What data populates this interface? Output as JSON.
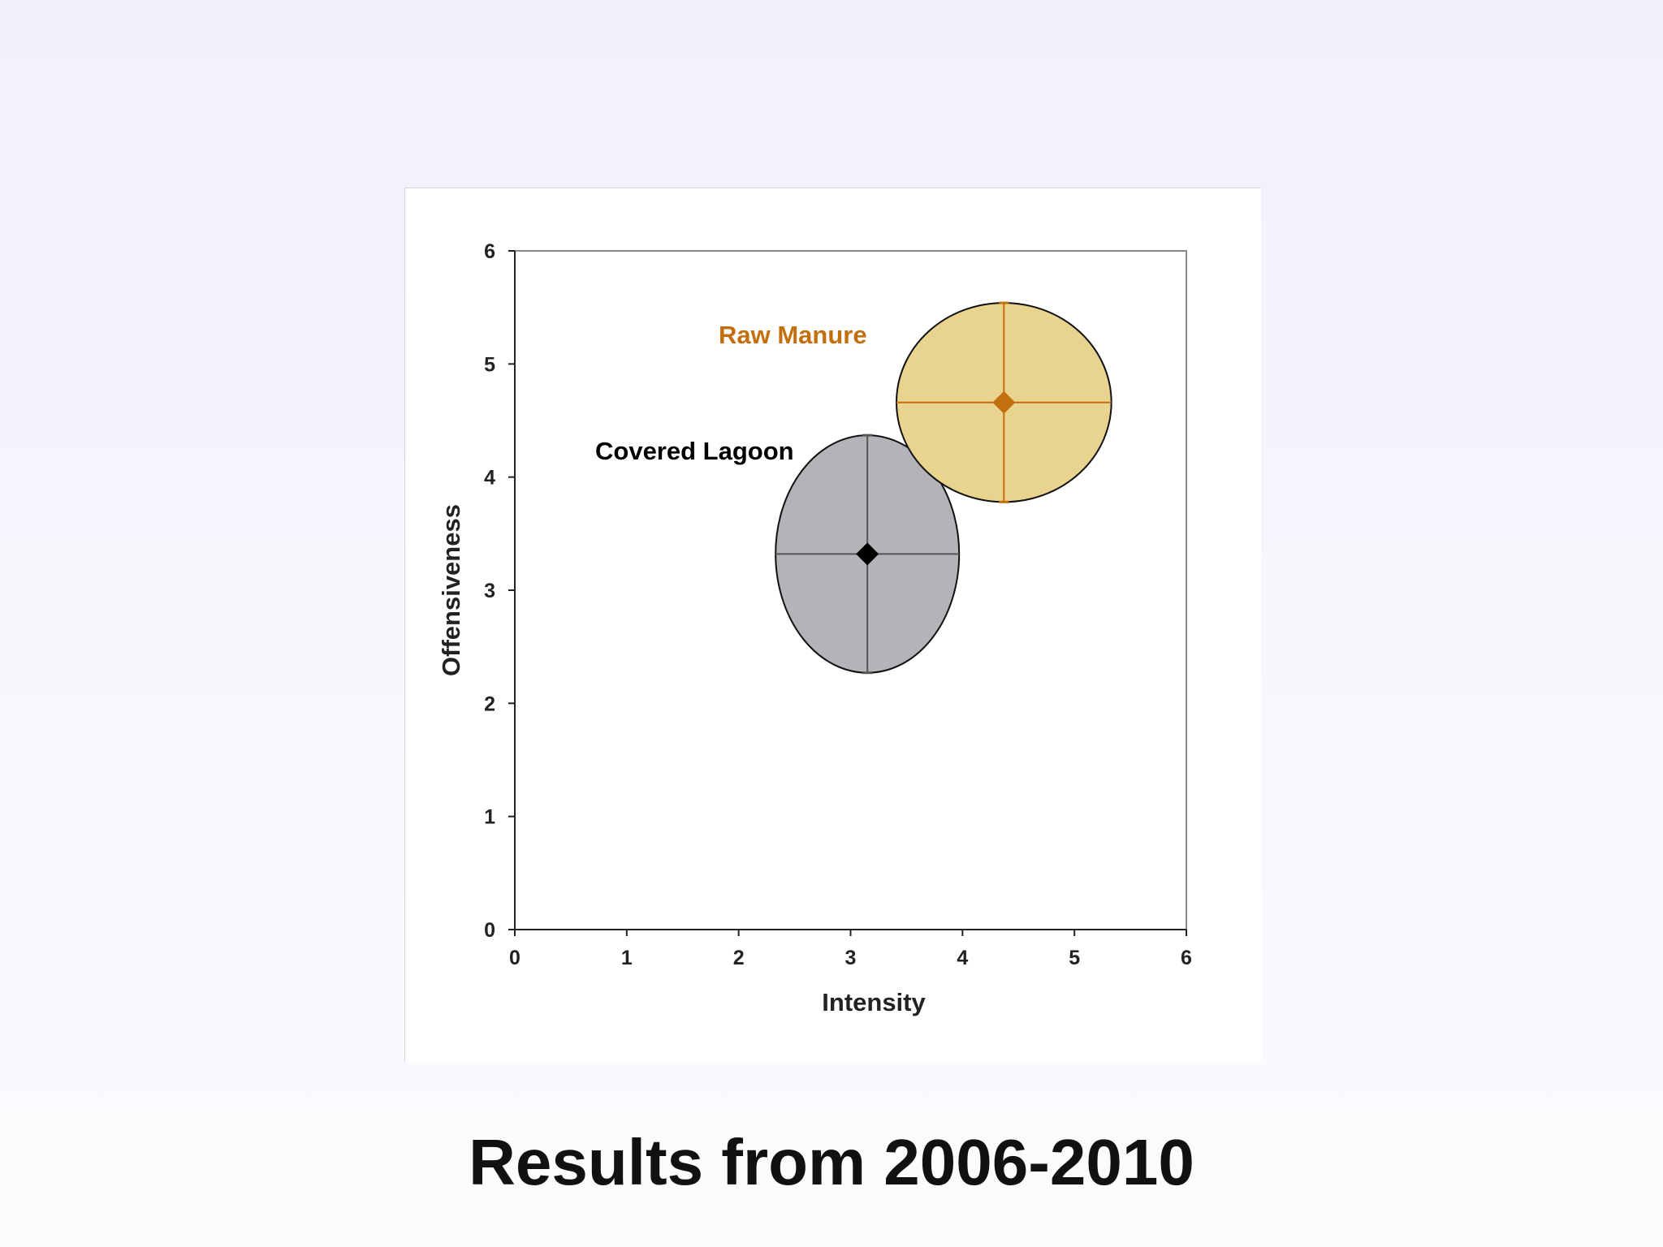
{
  "slide": {
    "title": "Results from 2006-2010"
  },
  "chart_data": {
    "type": "scatter",
    "title": "",
    "xlabel": "Intensity",
    "ylabel": "Offensiveness",
    "xlim": [
      0,
      6
    ],
    "ylim": [
      0,
      6
    ],
    "x_ticks": [
      "0",
      "1",
      "2",
      "3",
      "4",
      "5",
      "6"
    ],
    "y_ticks": [
      "0",
      "1",
      "2",
      "3",
      "4",
      "5",
      "6"
    ],
    "grid": false,
    "series": [
      {
        "name": "Covered Lagoon",
        "x": 3.15,
        "y": 3.32,
        "x_error": 0.82,
        "y_error": 1.05,
        "color": "#000000",
        "fill": "#b4b3b8"
      },
      {
        "name": "Raw Manure",
        "x": 4.37,
        "y": 4.66,
        "x_error": 0.96,
        "y_error": 0.88,
        "color": "#c46f0e",
        "fill": "#e8d38f"
      }
    ]
  }
}
